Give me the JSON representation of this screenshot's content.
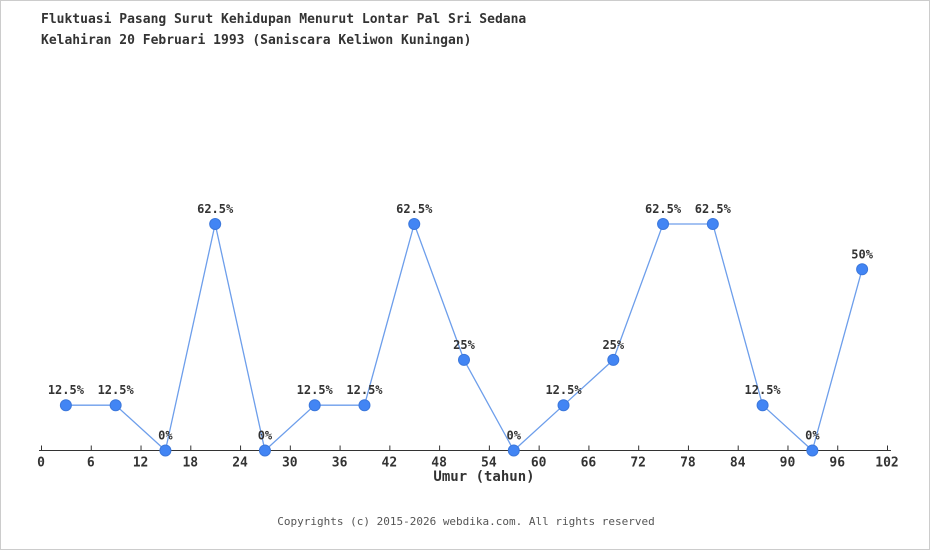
{
  "title": {
    "line1": "Fluktuasi Pasang Surut Kehidupan Menurut Lontar Pal Sri Sedana",
    "line2": "Kelahiran 20 Februari 1993 (Saniscara Keliwon Kuningan)"
  },
  "chart_data": {
    "type": "line",
    "title": "Fluktuasi Pasang Surut Kehidupan Menurut Lontar Pal Sri Sedana Kelahiran 20 Februari 1993 (Saniscara Keliwon Kuningan)",
    "xlabel": "Umur (tahun)",
    "ylabel": "",
    "x": [
      3,
      9,
      15,
      21,
      27,
      33,
      39,
      45,
      51,
      57,
      63,
      69,
      75,
      81,
      87,
      93,
      99
    ],
    "values": [
      12.5,
      12.5,
      0,
      62.5,
      0,
      12.5,
      12.5,
      62.5,
      25,
      0,
      12.5,
      25,
      62.5,
      62.5,
      12.5,
      0,
      50
    ],
    "point_labels": [
      "12.5%",
      "12.5%",
      "0%",
      "62.5%",
      "0%",
      "12.5%",
      "12.5%",
      "62.5%",
      "25%",
      "0%",
      "12.5%",
      "25%",
      "62.5%",
      "62.5%",
      "12.5%",
      "0%",
      "50%"
    ],
    "x_ticks": [
      0,
      6,
      12,
      18,
      24,
      30,
      36,
      42,
      48,
      54,
      60,
      66,
      72,
      78,
      84,
      90,
      96,
      102
    ],
    "xlim": [
      0,
      102
    ],
    "ylim": [
      0,
      62.5
    ],
    "grid": false,
    "legend": "none",
    "colors": {
      "line": "#6d9eeb",
      "marker_fill": "#4285f4",
      "marker_stroke": "#3c78dc",
      "axis": "#333333",
      "text": "#333333"
    }
  },
  "footer": {
    "copyright": "Copyrights (c) 2015-2026 webdika.com. All rights reserved"
  }
}
